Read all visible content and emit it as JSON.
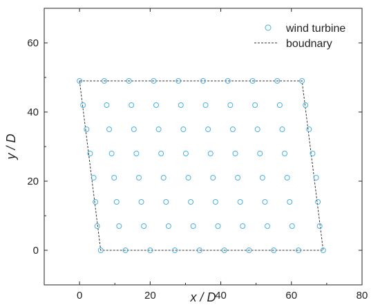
{
  "chart_data": {
    "type": "scatter",
    "xlabel": "x / D",
    "ylabel": "y / D",
    "xlim": [
      -10,
      80
    ],
    "ylim": [
      -10,
      70
    ],
    "xticks": [
      "0",
      "20",
      "40",
      "60",
      "80"
    ],
    "yticks": [
      "0",
      "20",
      "40",
      "60"
    ],
    "grid": false,
    "legend_position": "top-right",
    "legend": [
      {
        "label": "wind turbine",
        "marker": "circle"
      },
      {
        "label": "boudnary",
        "line": "dashed"
      }
    ],
    "series": [
      {
        "name": "wind turbine",
        "color": "#4ab0e6",
        "marker": "hollow-circle",
        "rows": [
          {
            "y": 49,
            "x": [
              0,
              7,
              14,
              21,
              28,
              35,
              42,
              49,
              56,
              63
            ]
          },
          {
            "y": 42,
            "x": [
              1,
              7.7,
              14.7,
              21.7,
              28.7,
              35.7,
              42.7,
              49.7,
              56.7,
              64
            ]
          },
          {
            "y": 35,
            "x": [
              2,
              8.4,
              15.4,
              22.4,
              29.4,
              36.4,
              43.4,
              50.4,
              57.4,
              65
            ]
          },
          {
            "y": 28,
            "x": [
              3,
              9.1,
              16.1,
              23.1,
              30.1,
              37.1,
              44.1,
              51.1,
              58.1,
              66
            ]
          },
          {
            "y": 21,
            "x": [
              4,
              9.8,
              16.8,
              23.8,
              30.8,
              37.8,
              44.8,
              51.8,
              58.8,
              67
            ]
          },
          {
            "y": 14,
            "x": [
              4.5,
              10.5,
              17.5,
              24.5,
              31.5,
              38.5,
              45.5,
              52.5,
              59.5,
              67.5
            ]
          },
          {
            "y": 7,
            "x": [
              5,
              11.2,
              18.2,
              25.2,
              32.2,
              39.2,
              46.2,
              53.2,
              60.2,
              68
            ]
          },
          {
            "y": 0,
            "x": [
              6,
              13,
              20,
              27,
              34,
              41,
              48,
              55,
              62,
              69
            ]
          }
        ]
      },
      {
        "name": "boudnary",
        "color": "#333333",
        "style": "dashed",
        "points": [
          [
            0,
            49
          ],
          [
            63,
            49
          ],
          [
            69,
            0
          ],
          [
            6,
            0
          ],
          [
            0,
            49
          ]
        ]
      }
    ]
  }
}
